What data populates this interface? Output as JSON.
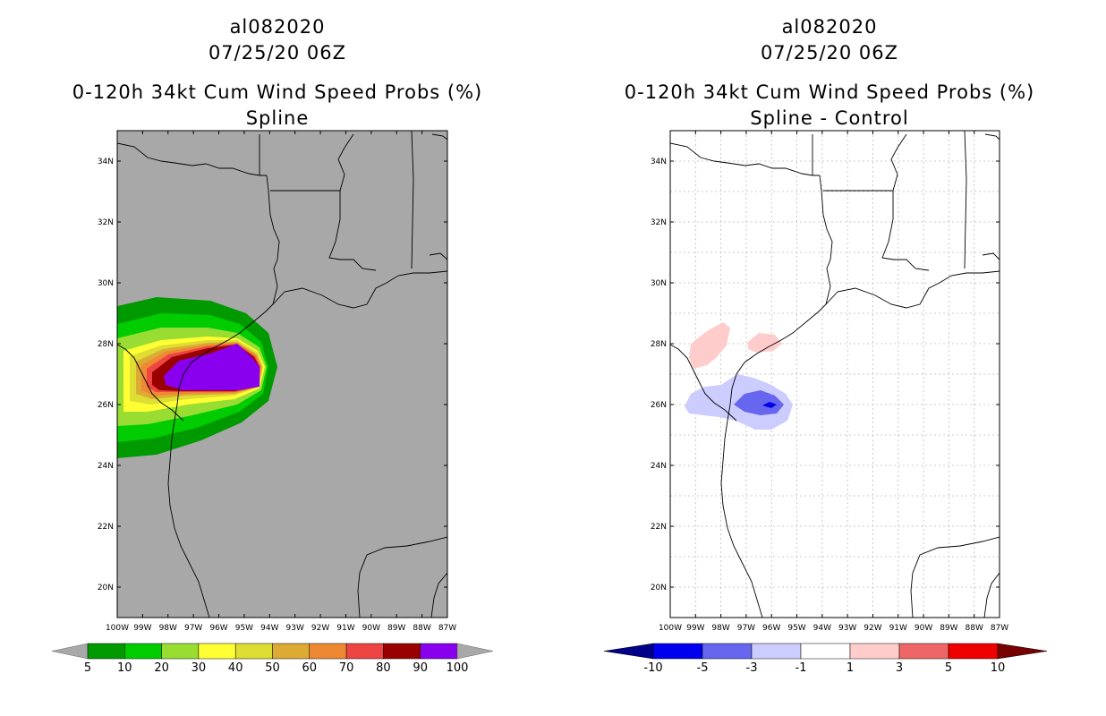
{
  "left": {
    "title_line1": "al082020",
    "title_line2": "07/25/20 06Z",
    "title_line3": "0-120h 34kt Cum Wind Speed Probs (%)",
    "title_line4": "Spline",
    "background": "#a8a8a8"
  },
  "right": {
    "title_line1": "al082020",
    "title_line2": "07/25/20 06Z",
    "title_line3": "0-120h 34kt Cum Wind Speed Probs (%)",
    "title_line4": "Spline - Control",
    "background": "#ffffff"
  },
  "axes": {
    "lon_labels": [
      "100W",
      "99W",
      "98W",
      "97W",
      "96W",
      "95W",
      "94W",
      "93W",
      "92W",
      "91W",
      "90W",
      "89W",
      "88W",
      "87W"
    ],
    "lat_labels": [
      "20N",
      "22N",
      "24N",
      "26N",
      "28N",
      "30N",
      "32N",
      "34N"
    ]
  },
  "left_colorbar": {
    "labels": [
      "5",
      "10",
      "20",
      "30",
      "40",
      "50",
      "60",
      "70",
      "80",
      "90",
      "100"
    ],
    "colors": [
      "#009900",
      "#00cc00",
      "#99dd33",
      "#ffff33",
      "#dddd33",
      "#ddaa33",
      "#ee8833",
      "#ee4444",
      "#990000",
      "#8800ee"
    ],
    "under_color": "#a8a8a8",
    "over_color": "#a8a8a8"
  },
  "right_colorbar": {
    "labels": [
      "-10",
      "-5",
      "-3",
      "-1",
      "1",
      "3",
      "5",
      "10"
    ],
    "colors": [
      "#0000ee",
      "#6666ee",
      "#ccccff",
      "#ffffff",
      "#ffcccc",
      "#ee6666",
      "#ee0000"
    ],
    "under_color": "#000088",
    "over_color": "#770000"
  }
}
